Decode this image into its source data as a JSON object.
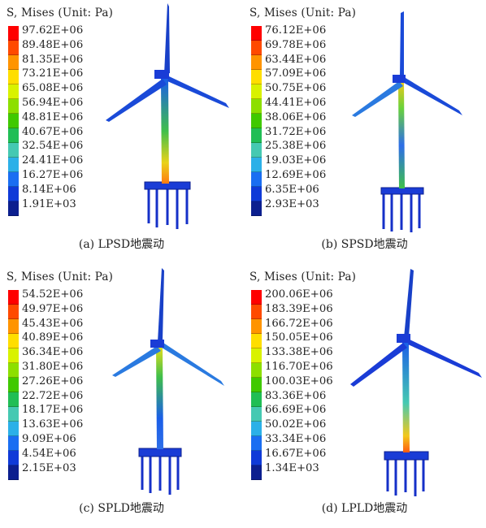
{
  "legend_title": "S, Mises (Unit: Pa)",
  "colors": [
    "#ff0000",
    "#ff4a00",
    "#ff9400",
    "#ffde00",
    "#d9f200",
    "#8ddf00",
    "#40c900",
    "#20be55",
    "#45c9b2",
    "#2bb0e8",
    "#1a6ef2",
    "#0f3ad8",
    "#0c1f8f"
  ],
  "panels": [
    {
      "caption": "(a) LPSD地震动",
      "ticks": [
        "97.62E+06",
        "89.48E+06",
        "81.35E+06",
        "73.21E+06",
        "65.08E+06",
        "56.94E+06",
        "48.81E+06",
        "40.67E+06",
        "32.54E+06",
        "24.41E+06",
        "16.27E+06",
        "8.14E+06",
        "1.91E+03"
      ]
    },
    {
      "caption": "(b) SPSD地震动",
      "ticks": [
        "76.12E+06",
        "69.78E+06",
        "63.44E+06",
        "57.09E+06",
        "50.75E+06",
        "44.41E+06",
        "38.06E+06",
        "31.72E+06",
        "25.38E+06",
        "19.03E+06",
        "12.69E+06",
        "6.35E+06",
        "2.93E+03"
      ]
    },
    {
      "caption": "(c) SPLD地震动",
      "ticks": [
        "54.52E+06",
        "49.97E+06",
        "45.43E+06",
        "40.89E+06",
        "36.34E+06",
        "31.80E+06",
        "27.26E+06",
        "22.72E+06",
        "18.17E+06",
        "13.63E+06",
        "9.09E+06",
        "4.54E+06",
        "2.15E+03"
      ]
    },
    {
      "caption": "(d) LPLD地震动",
      "ticks": [
        "200.06E+06",
        "183.39E+06",
        "166.72E+06",
        "150.05E+06",
        "133.38E+06",
        "116.70E+06",
        "100.03E+06",
        "83.36E+06",
        "66.69E+06",
        "50.02E+06",
        "33.34E+06",
        "16.67E+06",
        "1.34E+03"
      ]
    }
  ]
}
